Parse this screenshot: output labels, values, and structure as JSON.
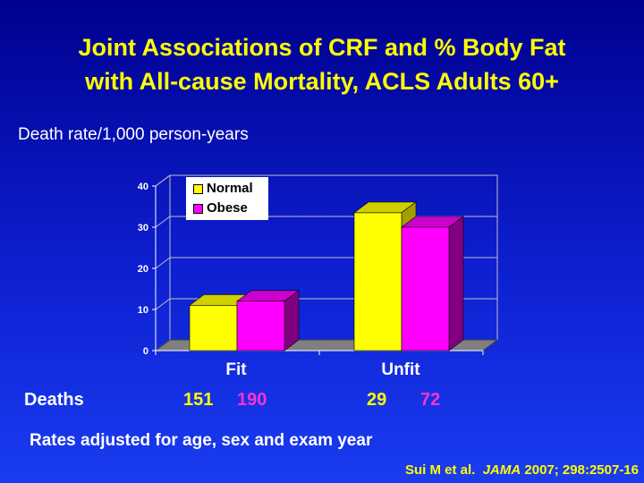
{
  "title_line1": "Joint Associations of CRF and % Body Fat",
  "title_line2": "with All-cause Mortality, ACLS Adults 60+",
  "y_caption": "Death rate/1,000 person-years",
  "deaths": {
    "label": "Deaths",
    "fit_normal": "151",
    "fit_obese": "190",
    "unfit_normal": "29",
    "unfit_obese": "72"
  },
  "note": "Rates adjusted for age, sex and exam year",
  "citation": {
    "authors": "Sui M et al.",
    "journal": "JAMA",
    "ref": "2007; 298:2507-16"
  },
  "colors": {
    "normal": "#ffff00",
    "obese": "#ff00ff",
    "accent": "#ffff00"
  },
  "chart_data": {
    "type": "bar",
    "categories": [
      "Fit",
      "Unfit"
    ],
    "series": [
      {
        "name": "Normal",
        "values": [
          11,
          33.5
        ]
      },
      {
        "name": "Obese",
        "values": [
          12,
          30
        ]
      }
    ],
    "ylim": [
      0,
      40
    ],
    "yticks": [
      "0",
      "10",
      "20",
      "30",
      "40"
    ],
    "grid": true,
    "legend_position": "top-left"
  }
}
